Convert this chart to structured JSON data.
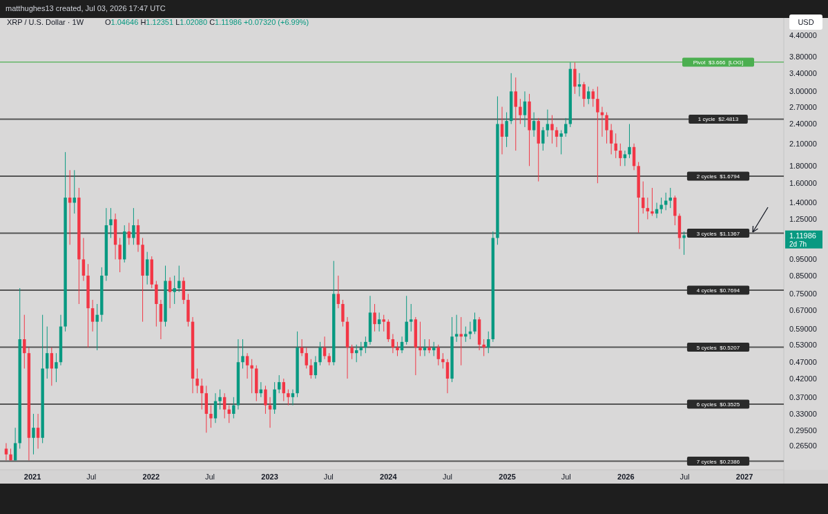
{
  "chart_data": {
    "type": "candlestick",
    "title": "XRP / U.S. Dollar · 1W",
    "x": [
      "2020-10-12",
      "2020-10-26",
      "2020-11-09",
      "2020-11-23",
      "2020-12-07",
      "2020-12-21",
      "2021-01-04",
      "2021-01-18",
      "2021-02-01",
      "2021-02-15",
      "2021-03-01",
      "2021-03-15",
      "2021-03-29",
      "2021-04-12",
      "2021-04-26",
      "2021-05-10",
      "2021-05-24",
      "2021-06-07",
      "2021-06-21",
      "2021-07-05",
      "2021-07-19",
      "2021-08-02",
      "2021-08-16",
      "2021-08-30",
      "2021-09-13",
      "2021-09-27",
      "2021-10-11",
      "2021-10-25",
      "2021-11-08",
      "2021-11-22",
      "2021-12-06",
      "2021-12-20",
      "2022-01-03",
      "2022-01-17",
      "2022-01-31",
      "2022-02-14",
      "2022-02-28",
      "2022-03-14",
      "2022-03-28",
      "2022-04-11",
      "2022-04-25",
      "2022-05-09",
      "2022-05-23",
      "2022-06-06",
      "2022-06-20",
      "2022-07-04",
      "2022-07-18",
      "2022-08-01",
      "2022-08-15",
      "2022-08-29",
      "2022-09-12",
      "2022-09-26",
      "2022-10-10",
      "2022-10-24",
      "2022-11-07",
      "2022-11-21",
      "2022-12-05",
      "2022-12-19",
      "2023-01-02",
      "2023-01-16",
      "2023-01-30",
      "2023-02-13",
      "2023-02-27",
      "2023-03-13",
      "2023-03-27",
      "2023-04-10",
      "2023-04-24",
      "2023-05-08",
      "2023-05-22",
      "2023-06-05",
      "2023-06-19",
      "2023-07-03",
      "2023-07-17",
      "2023-07-31",
      "2023-08-14",
      "2023-08-28",
      "2023-09-11",
      "2023-09-25",
      "2023-10-09",
      "2023-10-23",
      "2023-11-06",
      "2023-11-20",
      "2023-12-04",
      "2023-12-18",
      "2024-01-01",
      "2024-01-15",
      "2024-01-29",
      "2024-02-12",
      "2024-02-26",
      "2024-03-11",
      "2024-03-25",
      "2024-04-08",
      "2024-04-22",
      "2024-05-06",
      "2024-05-20",
      "2024-06-03",
      "2024-06-17",
      "2024-07-01",
      "2024-07-15",
      "2024-07-29",
      "2024-08-12",
      "2024-08-26",
      "2024-09-09",
      "2024-09-23",
      "2024-10-07",
      "2024-10-21",
      "2024-11-04",
      "2024-11-18",
      "2024-12-02",
      "2024-12-16",
      "2024-12-30",
      "2025-01-13",
      "2025-01-27",
      "2025-02-10",
      "2025-02-24",
      "2025-03-10",
      "2025-03-24",
      "2025-04-07",
      "2025-04-21",
      "2025-05-05",
      "2025-05-19",
      "2025-06-02",
      "2025-06-16",
      "2025-06-30",
      "2025-07-14",
      "2025-07-28",
      "2025-08-11",
      "2025-08-25",
      "2025-09-08",
      "2025-09-22",
      "2025-10-06",
      "2025-10-20",
      "2025-11-03",
      "2025-11-17",
      "2025-12-01",
      "2025-12-15",
      "2025-12-29",
      "2026-01-12",
      "2026-01-26",
      "2026-02-09",
      "2026-02-23",
      "2026-03-09",
      "2026-03-23",
      "2026-04-06",
      "2026-04-20",
      "2026-05-04",
      "2026-05-18",
      "2026-06-01",
      "2026-06-15",
      "2026-06-29"
    ],
    "ohlc": [
      [
        0.26,
        0.27,
        0.24,
        0.25
      ],
      [
        0.25,
        0.26,
        0.24,
        0.24
      ],
      [
        0.24,
        0.3,
        0.24,
        0.27
      ],
      [
        0.27,
        0.78,
        0.26,
        0.55
      ],
      [
        0.55,
        0.65,
        0.45,
        0.5
      ],
      [
        0.5,
        0.52,
        0.24,
        0.28
      ],
      [
        0.28,
        0.33,
        0.25,
        0.3
      ],
      [
        0.3,
        0.33,
        0.26,
        0.28
      ],
      [
        0.28,
        0.65,
        0.27,
        0.45
      ],
      [
        0.45,
        0.6,
        0.42,
        0.5
      ],
      [
        0.5,
        0.52,
        0.4,
        0.45
      ],
      [
        0.45,
        0.5,
        0.41,
        0.47
      ],
      [
        0.47,
        0.65,
        0.46,
        0.6
      ],
      [
        0.6,
        1.98,
        0.58,
        1.45
      ],
      [
        1.45,
        1.75,
        1.05,
        1.4
      ],
      [
        1.4,
        1.75,
        1.3,
        1.45
      ],
      [
        1.45,
        1.55,
        0.7,
        0.95
      ],
      [
        0.95,
        1.1,
        0.82,
        0.85
      ],
      [
        0.85,
        0.92,
        0.52,
        0.68
      ],
      [
        0.68,
        0.72,
        0.58,
        0.62
      ],
      [
        0.62,
        0.7,
        0.51,
        0.65
      ],
      [
        0.65,
        0.9,
        0.62,
        0.85
      ],
      [
        0.85,
        1.35,
        0.82,
        1.2
      ],
      [
        1.2,
        1.35,
        1.1,
        1.25
      ],
      [
        1.25,
        1.3,
        0.95,
        1.05
      ],
      [
        1.05,
        1.1,
        0.87,
        0.95
      ],
      [
        0.95,
        1.2,
        0.93,
        1.15
      ],
      [
        1.15,
        1.22,
        1.05,
        1.1
      ],
      [
        1.1,
        1.35,
        1.05,
        1.2
      ],
      [
        1.2,
        1.25,
        1.0,
        1.05
      ],
      [
        1.05,
        1.1,
        0.62,
        0.85
      ],
      [
        0.85,
        1.0,
        0.8,
        0.95
      ],
      [
        0.95,
        0.97,
        0.78,
        0.8
      ],
      [
        0.8,
        0.82,
        0.6,
        0.7
      ],
      [
        0.7,
        0.72,
        0.55,
        0.62
      ],
      [
        0.62,
        0.91,
        0.6,
        0.82
      ],
      [
        0.82,
        0.84,
        0.68,
        0.76
      ],
      [
        0.76,
        0.85,
        0.7,
        0.78
      ],
      [
        0.78,
        0.91,
        0.76,
        0.82
      ],
      [
        0.82,
        0.84,
        0.7,
        0.72
      ],
      [
        0.72,
        0.75,
        0.6,
        0.62
      ],
      [
        0.62,
        0.64,
        0.38,
        0.42
      ],
      [
        0.42,
        0.45,
        0.38,
        0.4
      ],
      [
        0.4,
        0.42,
        0.34,
        0.38
      ],
      [
        0.38,
        0.4,
        0.29,
        0.33
      ],
      [
        0.33,
        0.35,
        0.3,
        0.32
      ],
      [
        0.32,
        0.38,
        0.31,
        0.36
      ],
      [
        0.36,
        0.39,
        0.34,
        0.37
      ],
      [
        0.37,
        0.38,
        0.32,
        0.34
      ],
      [
        0.34,
        0.35,
        0.31,
        0.33
      ],
      [
        0.33,
        0.37,
        0.32,
        0.35
      ],
      [
        0.35,
        0.55,
        0.34,
        0.47
      ],
      [
        0.47,
        0.55,
        0.45,
        0.49
      ],
      [
        0.49,
        0.5,
        0.42,
        0.46
      ],
      [
        0.46,
        0.48,
        0.38,
        0.45
      ],
      [
        0.45,
        0.46,
        0.36,
        0.38
      ],
      [
        0.38,
        0.41,
        0.37,
        0.39
      ],
      [
        0.39,
        0.4,
        0.33,
        0.35
      ],
      [
        0.35,
        0.37,
        0.3,
        0.34
      ],
      [
        0.34,
        0.41,
        0.33,
        0.39
      ],
      [
        0.39,
        0.43,
        0.38,
        0.41
      ],
      [
        0.41,
        0.42,
        0.36,
        0.38
      ],
      [
        0.38,
        0.39,
        0.35,
        0.37
      ],
      [
        0.37,
        0.39,
        0.35,
        0.38
      ],
      [
        0.38,
        0.58,
        0.37,
        0.52
      ],
      [
        0.52,
        0.55,
        0.49,
        0.5
      ],
      [
        0.5,
        0.52,
        0.45,
        0.46
      ],
      [
        0.46,
        0.48,
        0.42,
        0.43
      ],
      [
        0.43,
        0.49,
        0.42,
        0.47
      ],
      [
        0.47,
        0.54,
        0.46,
        0.52
      ],
      [
        0.52,
        0.56,
        0.48,
        0.49
      ],
      [
        0.49,
        0.5,
        0.46,
        0.47
      ],
      [
        0.47,
        0.94,
        0.46,
        0.75
      ],
      [
        0.75,
        0.85,
        0.68,
        0.7
      ],
      [
        0.7,
        0.72,
        0.6,
        0.62
      ],
      [
        0.62,
        0.64,
        0.42,
        0.52
      ],
      [
        0.52,
        0.53,
        0.48,
        0.5
      ],
      [
        0.5,
        0.53,
        0.47,
        0.51
      ],
      [
        0.51,
        0.54,
        0.49,
        0.52
      ],
      [
        0.52,
        0.56,
        0.5,
        0.54
      ],
      [
        0.54,
        0.74,
        0.53,
        0.66
      ],
      [
        0.66,
        0.7,
        0.58,
        0.61
      ],
      [
        0.61,
        0.66,
        0.58,
        0.63
      ],
      [
        0.63,
        0.65,
        0.58,
        0.62
      ],
      [
        0.62,
        0.63,
        0.54,
        0.55
      ],
      [
        0.55,
        0.57,
        0.5,
        0.52
      ],
      [
        0.52,
        0.54,
        0.49,
        0.51
      ],
      [
        0.51,
        0.56,
        0.5,
        0.54
      ],
      [
        0.54,
        0.74,
        0.53,
        0.62
      ],
      [
        0.62,
        0.7,
        0.58,
        0.63
      ],
      [
        0.63,
        0.64,
        0.43,
        0.52
      ],
      [
        0.52,
        0.62,
        0.49,
        0.51
      ],
      [
        0.51,
        0.55,
        0.49,
        0.52
      ],
      [
        0.52,
        0.55,
        0.5,
        0.51
      ],
      [
        0.51,
        0.54,
        0.49,
        0.52
      ],
      [
        0.52,
        0.53,
        0.46,
        0.48
      ],
      [
        0.48,
        0.5,
        0.45,
        0.47
      ],
      [
        0.47,
        0.48,
        0.38,
        0.42
      ],
      [
        0.42,
        0.64,
        0.41,
        0.56
      ],
      [
        0.56,
        0.65,
        0.54,
        0.57
      ],
      [
        0.57,
        0.64,
        0.46,
        0.56
      ],
      [
        0.56,
        0.6,
        0.54,
        0.57
      ],
      [
        0.57,
        0.62,
        0.55,
        0.58
      ],
      [
        0.58,
        0.66,
        0.57,
        0.63
      ],
      [
        0.63,
        0.64,
        0.51,
        0.53
      ],
      [
        0.53,
        0.55,
        0.49,
        0.52
      ],
      [
        0.52,
        0.58,
        0.5,
        0.55
      ],
      [
        0.55,
        1.15,
        0.54,
        1.1
      ],
      [
        1.1,
        2.9,
        1.05,
        2.4
      ],
      [
        2.4,
        2.7,
        1.95,
        2.2
      ],
      [
        2.2,
        2.6,
        2.05,
        2.45
      ],
      [
        2.45,
        3.4,
        2.4,
        3.0
      ],
      [
        3.0,
        3.3,
        2.0,
        2.7
      ],
      [
        2.7,
        2.85,
        2.4,
        2.55
      ],
      [
        2.55,
        3.0,
        2.35,
        2.8
      ],
      [
        2.8,
        2.95,
        1.8,
        2.3
      ],
      [
        2.3,
        2.6,
        2.2,
        2.45
      ],
      [
        2.45,
        2.5,
        1.62,
        2.1
      ],
      [
        2.1,
        2.35,
        2.0,
        2.3
      ],
      [
        2.3,
        2.65,
        2.2,
        2.4
      ],
      [
        2.4,
        2.55,
        2.1,
        2.3
      ],
      [
        2.3,
        2.35,
        2.05,
        2.2
      ],
      [
        2.2,
        2.3,
        1.95,
        2.25
      ],
      [
        2.25,
        2.5,
        2.2,
        2.4
      ],
      [
        2.4,
        3.66,
        2.35,
        3.5
      ],
      [
        3.5,
        3.66,
        2.95,
        3.1
      ],
      [
        3.1,
        3.4,
        2.9,
        3.15
      ],
      [
        3.15,
        3.2,
        2.7,
        2.85
      ],
      [
        2.85,
        3.1,
        2.75,
        3.0
      ],
      [
        3.0,
        3.05,
        2.7,
        2.85
      ],
      [
        2.85,
        3.1,
        1.6,
        2.6
      ],
      [
        2.6,
        2.7,
        2.2,
        2.55
      ],
      [
        2.55,
        2.6,
        2.1,
        2.3
      ],
      [
        2.3,
        2.4,
        1.95,
        2.1
      ],
      [
        2.1,
        2.25,
        1.9,
        2.0
      ],
      [
        2.0,
        2.1,
        1.8,
        1.9
      ],
      [
        1.9,
        2.0,
        1.8,
        1.95
      ],
      [
        1.95,
        2.4,
        1.9,
        2.05
      ],
      [
        2.05,
        2.1,
        1.75,
        1.8
      ],
      [
        1.8,
        1.85,
        1.14,
        1.45
      ],
      [
        1.45,
        1.62,
        1.3,
        1.35
      ],
      [
        1.35,
        1.45,
        1.25,
        1.32
      ],
      [
        1.32,
        1.55,
        1.28,
        1.3
      ],
      [
        1.3,
        1.4,
        1.26,
        1.34
      ],
      [
        1.34,
        1.45,
        1.3,
        1.38
      ],
      [
        1.38,
        1.5,
        1.33,
        1.42
      ],
      [
        1.42,
        1.55,
        1.35,
        1.45
      ],
      [
        1.45,
        1.47,
        1.2,
        1.28
      ],
      [
        1.28,
        1.3,
        1.02,
        1.1
      ],
      [
        1.1,
        1.15,
        0.98,
        1.12
      ]
    ],
    "log": true,
    "xlim": [
      "2020-09-23",
      "2027-05-02"
    ],
    "xticks": [
      {
        "value": "2021-01-01",
        "label": "2021"
      },
      {
        "value": "2021-07-01",
        "label": "Jul"
      },
      {
        "value": "2022-01-01",
        "label": "2022"
      },
      {
        "value": "2022-07-01",
        "label": "Jul"
      },
      {
        "value": "2023-01-01",
        "label": "2023"
      },
      {
        "value": "2023-07-01",
        "label": "Jul"
      },
      {
        "value": "2024-01-01",
        "label": "2024"
      },
      {
        "value": "2024-07-01",
        "label": "Jul"
      },
      {
        "value": "2025-01-01",
        "label": "2025"
      },
      {
        "value": "2025-07-01",
        "label": "Jul"
      },
      {
        "value": "2026-01-01",
        "label": "2026"
      },
      {
        "value": "2026-07-01",
        "label": "Jul"
      },
      {
        "value": "2027-01-01",
        "label": "2027"
      }
    ],
    "ylim": [
      0.225,
      4.96
    ],
    "yticks": [
      {
        "value": 0.265,
        "label": "0.26500"
      },
      {
        "value": 0.295,
        "label": "0.29500"
      },
      {
        "value": 0.33,
        "label": "0.33000"
      },
      {
        "value": 0.37,
        "label": "0.37000"
      },
      {
        "value": 0.42,
        "label": "0.42000"
      },
      {
        "value": 0.47,
        "label": "0.47000"
      },
      {
        "value": 0.53,
        "label": "0.53000"
      },
      {
        "value": 0.59,
        "label": "0.59000"
      },
      {
        "value": 0.67,
        "label": "0.67000"
      },
      {
        "value": 0.75,
        "label": "0.75000"
      },
      {
        "value": 0.85,
        "label": "0.85000"
      },
      {
        "value": 0.95,
        "label": "0.95000"
      },
      {
        "value": 1.25,
        "label": "1.25000"
      },
      {
        "value": 1.4,
        "label": "1.40000"
      },
      {
        "value": 1.6,
        "label": "1.60000"
      },
      {
        "value": 1.8,
        "label": "1.80000"
      },
      {
        "value": 2.1,
        "label": "2.10000"
      },
      {
        "value": 2.4,
        "label": "2.40000"
      },
      {
        "value": 2.7,
        "label": "2.70000"
      },
      {
        "value": 3.0,
        "label": "3.00000"
      },
      {
        "value": 3.4,
        "label": "3.40000"
      },
      {
        "value": 3.8,
        "label": "3.80000"
      },
      {
        "value": 4.4,
        "label": "4.40000"
      }
    ],
    "ref_lines": [
      {
        "axis": "y",
        "value": 3.666,
        "label": "Pivot  $3.666  [LOG]",
        "color": "#4caf50"
      },
      {
        "axis": "y",
        "value": 2.4813,
        "label": "1 cycle  $2.4813",
        "color": "#555555"
      },
      {
        "axis": "y",
        "value": 1.6794,
        "label": "2 cycles  $1.6794",
        "color": "#555555"
      },
      {
        "axis": "y",
        "value": 1.1367,
        "label": "3 cycles  $1.1367",
        "color": "#555555"
      },
      {
        "axis": "y",
        "value": 0.7694,
        "label": "4 cycles  $0.7694",
        "color": "#555555"
      },
      {
        "axis": "y",
        "value": 0.5207,
        "label": "5 cycles  $0.5207",
        "color": "#555555"
      },
      {
        "axis": "y",
        "value": 0.3525,
        "label": "6 cycles  $0.3525",
        "color": "#555555"
      },
      {
        "axis": "y",
        "value": 0.2386,
        "label": "7 cycles  $0.2386",
        "color": "#555555"
      }
    ],
    "annotations": [
      "matthughes13 created, Jul 03, 2026 17:47 UTC",
      "O1.04646 H1.12351 L1.02080 C1.11986 +0.07320 (+6.99%)",
      "USD",
      "1.11986",
      "2d 7h"
    ],
    "grid": false
  }
}
